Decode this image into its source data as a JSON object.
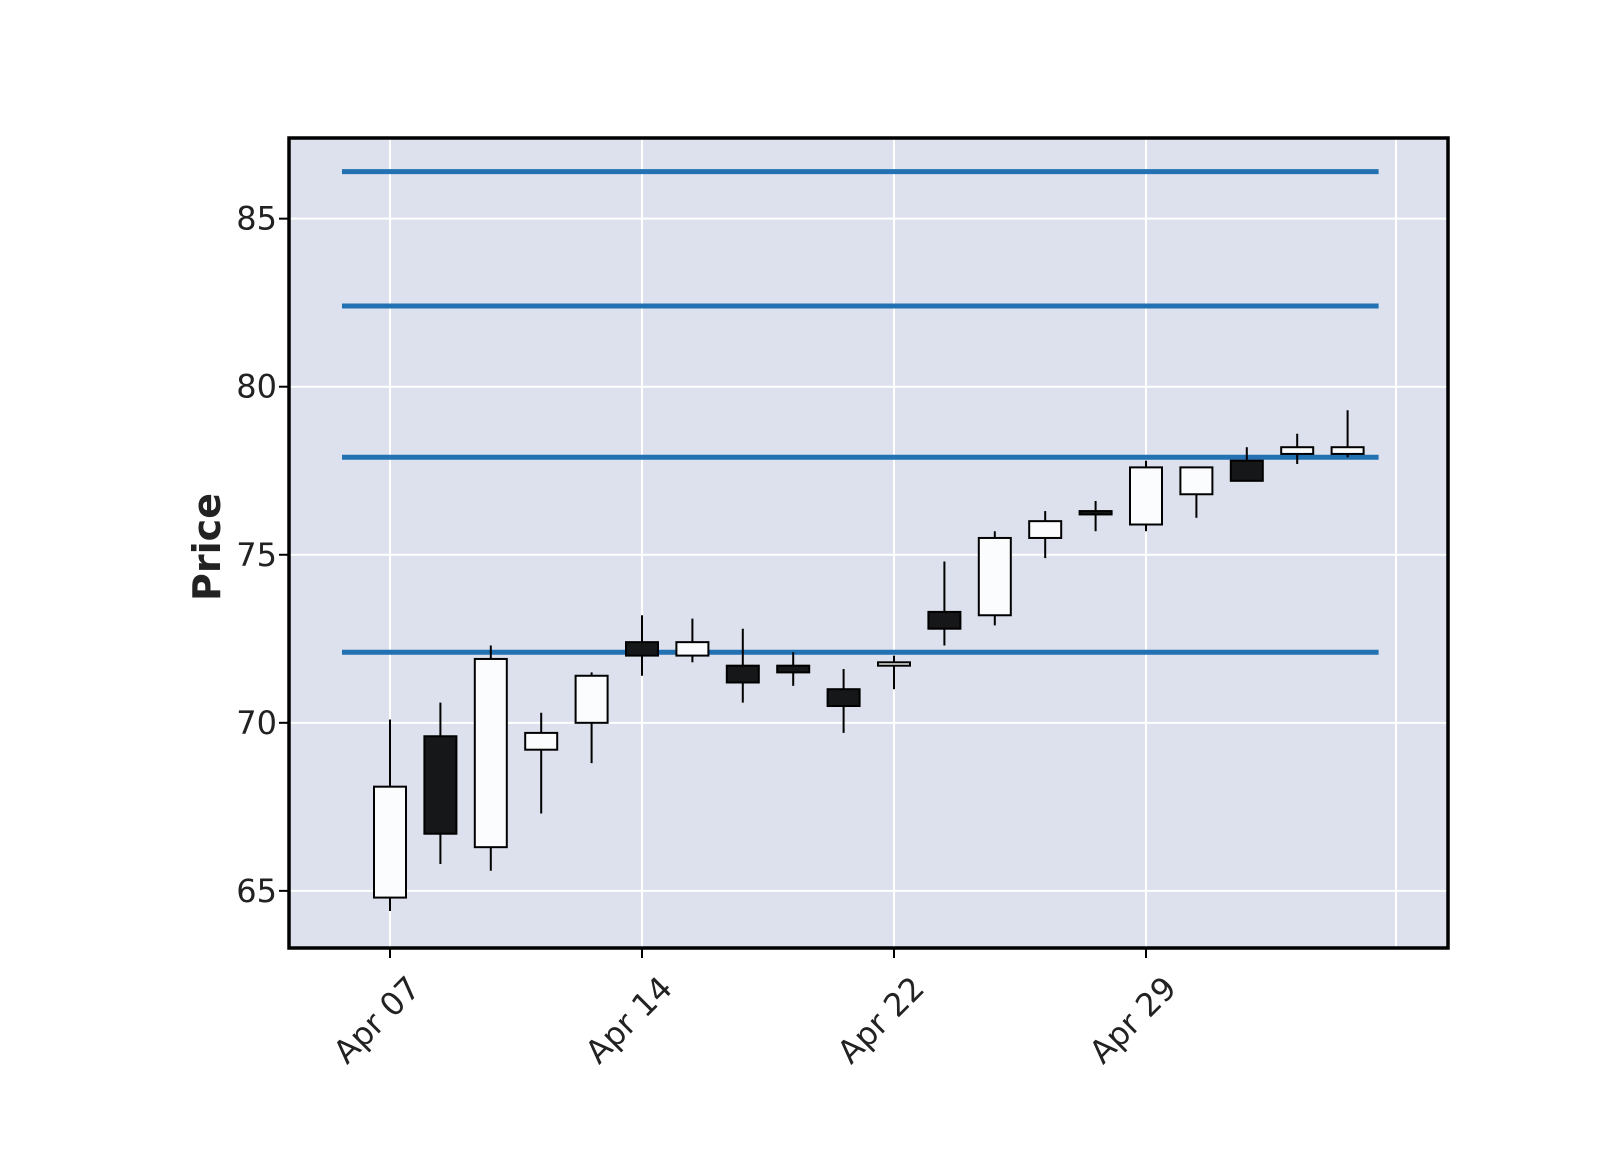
{
  "chart_data": {
    "type": "candlestick",
    "title": "",
    "xlabel": "",
    "ylabel": "Price",
    "ylim": [
      63.3,
      87.4
    ],
    "grid": true,
    "x_tick_labels": [
      "Apr 07",
      "Apr 14",
      "Apr 22",
      "Apr 29"
    ],
    "x_tick_dates": [
      "2019-04-07",
      "2019-04-14",
      "2019-04-22",
      "2019-04-29"
    ],
    "y_ticks": [
      65,
      70,
      75,
      80,
      85
    ],
    "candles": [
      {
        "date": "2019-04-07",
        "open": 64.8,
        "high": 70.1,
        "low": 64.4,
        "close": 68.1
      },
      {
        "date": "2019-04-08",
        "open": 69.6,
        "high": 70.6,
        "low": 65.8,
        "close": 66.7
      },
      {
        "date": "2019-04-09",
        "open": 66.3,
        "high": 72.3,
        "low": 65.6,
        "close": 71.9
      },
      {
        "date": "2019-04-10",
        "open": 69.2,
        "high": 70.3,
        "low": 67.3,
        "close": 69.7
      },
      {
        "date": "2019-04-11",
        "open": 70.0,
        "high": 71.5,
        "low": 68.8,
        "close": 71.4
      },
      {
        "date": "2019-04-14",
        "open": 72.4,
        "high": 73.2,
        "low": 71.4,
        "close": 72.0
      },
      {
        "date": "2019-04-15",
        "open": 72.0,
        "high": 73.1,
        "low": 71.8,
        "close": 72.4
      },
      {
        "date": "2019-04-16",
        "open": 71.7,
        "high": 72.8,
        "low": 70.6,
        "close": 71.2
      },
      {
        "date": "2019-04-17",
        "open": 71.7,
        "high": 72.1,
        "low": 71.1,
        "close": 71.5
      },
      {
        "date": "2019-04-18",
        "open": 71.0,
        "high": 71.6,
        "low": 69.7,
        "close": 70.5
      },
      {
        "date": "2019-04-22",
        "open": 71.7,
        "high": 72.0,
        "low": 71.0,
        "close": 71.8
      },
      {
        "date": "2019-04-23",
        "open": 73.3,
        "high": 74.8,
        "low": 72.3,
        "close": 72.8
      },
      {
        "date": "2019-04-24",
        "open": 73.2,
        "high": 75.7,
        "low": 72.9,
        "close": 75.5
      },
      {
        "date": "2019-04-25",
        "open": 75.5,
        "high": 76.3,
        "low": 74.9,
        "close": 76.0
      },
      {
        "date": "2019-04-26",
        "open": 76.3,
        "high": 76.6,
        "low": 75.7,
        "close": 76.2
      },
      {
        "date": "2019-04-29",
        "open": 75.9,
        "high": 77.8,
        "low": 75.7,
        "close": 77.6
      },
      {
        "date": "2019-04-30",
        "open": 76.8,
        "high": 77.6,
        "low": 76.1,
        "close": 77.6
      },
      {
        "date": "2019-05-01",
        "open": 77.8,
        "high": 78.2,
        "low": 77.2,
        "close": 77.2
      },
      {
        "date": "2019-05-02",
        "open": 78.0,
        "high": 78.6,
        "low": 77.7,
        "close": 78.2
      },
      {
        "date": "2019-05-03",
        "open": 78.0,
        "high": 79.3,
        "low": 77.9,
        "close": 78.2
      }
    ],
    "hlines": [
      86.4,
      82.4,
      77.9,
      72.1
    ],
    "colors": {
      "background": "#dce1ed",
      "up_body": "#fafcfe",
      "down_body": "#161719",
      "edge": "#000000",
      "hline": "#2271b2",
      "grid": "#ffffff",
      "frame": "#000000",
      "text": "#222222"
    }
  }
}
